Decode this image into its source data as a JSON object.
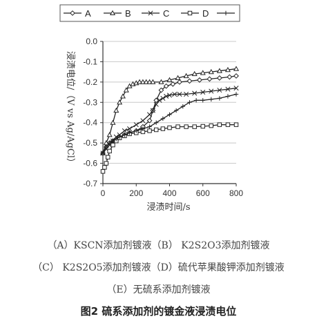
{
  "chart_data": {
    "type": "line",
    "xlabel": "浸渍时间/s",
    "ylabel": "浸渍电位/（V vs Ag/AgCl）",
    "xlim": [
      0,
      800
    ],
    "ylim": [
      -0.7,
      0.0
    ],
    "xticks": [
      "0",
      "200",
      "400",
      "600",
      "800"
    ],
    "yticks": [
      "0.0",
      "-0.1",
      "-0.2",
      "-0.3",
      "-0.4",
      "-0.5",
      "-0.6",
      "-0.7"
    ],
    "legend_position": "top",
    "series": [
      {
        "name": "A",
        "marker": "diamond",
        "x": [
          0,
          20,
          40,
          60,
          80,
          100,
          130,
          160,
          200,
          240,
          280,
          300,
          320,
          350,
          380,
          420,
          460,
          520,
          580,
          640,
          700,
          760,
          800
        ],
        "y": [
          -0.55,
          -0.52,
          -0.5,
          -0.49,
          -0.48,
          -0.47,
          -0.46,
          -0.45,
          -0.44,
          -0.42,
          -0.39,
          -0.34,
          -0.29,
          -0.24,
          -0.22,
          -0.21,
          -0.2,
          -0.195,
          -0.19,
          -0.185,
          -0.18,
          -0.175,
          -0.17
        ]
      },
      {
        "name": "B",
        "marker": "triangle",
        "x": [
          0,
          20,
          40,
          60,
          80,
          100,
          120,
          140,
          160,
          180,
          200,
          220,
          240,
          260,
          280,
          300,
          350,
          400,
          450,
          500,
          550,
          600,
          650,
          700,
          750,
          800
        ],
        "y": [
          -0.55,
          -0.5,
          -0.46,
          -0.4,
          -0.34,
          -0.3,
          -0.27,
          -0.24,
          -0.22,
          -0.21,
          -0.205,
          -0.2,
          -0.2,
          -0.2,
          -0.2,
          -0.2,
          -0.2,
          -0.19,
          -0.18,
          -0.17,
          -0.16,
          -0.155,
          -0.15,
          -0.145,
          -0.14,
          -0.135
        ]
      },
      {
        "name": "C",
        "marker": "x",
        "x": [
          0,
          20,
          40,
          60,
          80,
          100,
          130,
          160,
          200,
          240,
          280,
          300,
          320,
          340,
          360,
          380,
          400,
          430,
          460,
          500,
          550,
          600,
          650,
          700,
          750,
          800
        ],
        "y": [
          -0.55,
          -0.53,
          -0.51,
          -0.49,
          -0.47,
          -0.46,
          -0.44,
          -0.43,
          -0.41,
          -0.39,
          -0.36,
          -0.34,
          -0.31,
          -0.29,
          -0.28,
          -0.27,
          -0.265,
          -0.26,
          -0.26,
          -0.26,
          -0.255,
          -0.25,
          -0.245,
          -0.24,
          -0.235,
          -0.23
        ]
      },
      {
        "name": "D",
        "marker": "square",
        "x": [
          0,
          10,
          20,
          30,
          40,
          60,
          80,
          100,
          130,
          160,
          200,
          240,
          280,
          320,
          360,
          400,
          450,
          500,
          550,
          600,
          650,
          700,
          750,
          800
        ],
        "y": [
          -0.64,
          -0.62,
          -0.6,
          -0.57,
          -0.54,
          -0.51,
          -0.49,
          -0.475,
          -0.465,
          -0.455,
          -0.45,
          -0.445,
          -0.44,
          -0.435,
          -0.43,
          -0.425,
          -0.42,
          -0.42,
          -0.42,
          -0.418,
          -0.415,
          -0.41,
          -0.41,
          -0.41
        ]
      },
      {
        "name": "",
        "marker": "plus",
        "x": [
          0,
          20,
          40,
          60,
          80,
          100,
          130,
          160,
          200,
          240,
          280,
          320,
          360,
          400,
          440,
          480,
          520,
          560,
          600,
          650,
          700,
          750,
          800
        ],
        "y": [
          -0.55,
          -0.52,
          -0.5,
          -0.49,
          -0.48,
          -0.47,
          -0.46,
          -0.45,
          -0.44,
          -0.43,
          -0.42,
          -0.4,
          -0.38,
          -0.36,
          -0.34,
          -0.32,
          -0.3,
          -0.29,
          -0.29,
          -0.285,
          -0.28,
          -0.27,
          -0.26
        ]
      }
    ]
  },
  "captions": {
    "line1": "（A）KSCN添加剂镀液（B） K2S2O3添加剂镀液",
    "line2": "（C） K2S2O5添加剂镀液（D）硫代苹果酸钾添加剂镀液",
    "line3": "（E）无硫系添加剂镀液",
    "figure_title": "图2  硫系添加剂的镀金液浸渍电位"
  }
}
